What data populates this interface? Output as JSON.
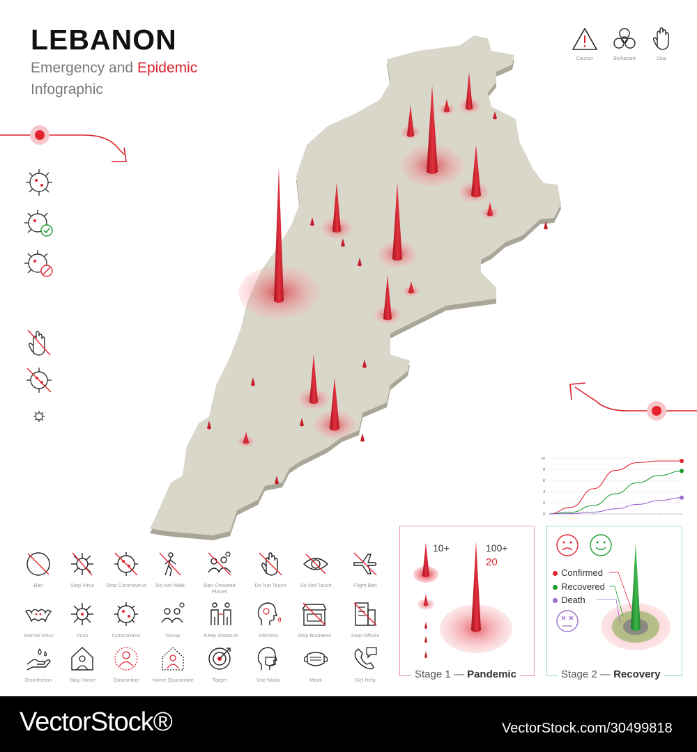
{
  "header": {
    "title": "LEBANON",
    "subtitle_prefix": "Emergency and",
    "subtitle_highlight": "Epidemic",
    "subtitle_line2": "Infographic"
  },
  "top_icons": [
    {
      "label": "Caution",
      "icon": "caution-icon"
    },
    {
      "label": "Biohazard",
      "icon": "biohazard-icon"
    },
    {
      "label": "Stop",
      "icon": "stop-hand-icon"
    }
  ],
  "icon_grid": [
    {
      "label": "Ban",
      "icon": "ban-icon"
    },
    {
      "label": "Stop Virus",
      "icon": "stop-virus-icon"
    },
    {
      "label": "Stop Coronavirus",
      "icon": "stop-coronavirus-icon"
    },
    {
      "label": "Do Not Walk",
      "icon": "do-not-walk-icon"
    },
    {
      "label": "Ban Crowded Places",
      "icon": "ban-crowded-places-icon"
    },
    {
      "label": "Do Not Touch",
      "icon": "do-not-touch-icon"
    },
    {
      "label": "Do Not Touch",
      "icon": "do-not-touch-eye-icon"
    },
    {
      "label": "Flight Ban",
      "icon": "flight-ban-icon"
    },
    {
      "label": "Animal Virus",
      "icon": "animal-virus-icon"
    },
    {
      "label": "Virus",
      "icon": "virus-icon"
    },
    {
      "label": "Coronavirus",
      "icon": "coronavirus-icon"
    },
    {
      "label": "Group",
      "icon": "group-icon"
    },
    {
      "label": "Keep Distance",
      "icon": "keep-distance-icon"
    },
    {
      "label": "Infection",
      "icon": "infection-icon"
    },
    {
      "label": "Stop Business",
      "icon": "stop-business-icon"
    },
    {
      "label": "Stop Offices",
      "icon": "stop-offices-icon"
    },
    {
      "label": "Disinfection",
      "icon": "disinfection-icon"
    },
    {
      "label": "Stay Home",
      "icon": "stay-home-icon"
    },
    {
      "label": "Quarantine",
      "icon": "quarantine-icon"
    },
    {
      "label": "Home Quarantine",
      "icon": "home-quarantine-icon"
    },
    {
      "label": "Target",
      "icon": "target-icon"
    },
    {
      "label": "Use Mask",
      "icon": "use-mask-icon"
    },
    {
      "label": "Mask",
      "icon": "mask-icon"
    },
    {
      "label": "Get Help",
      "icon": "get-help-icon"
    }
  ],
  "stage1": {
    "label_prefix": "Stage 1 —",
    "label_bold": "Pandemic",
    "small_value": "10+",
    "large_value": "100+",
    "count": "20"
  },
  "stage2": {
    "label_prefix": "Stage 2 —",
    "label_bold": "Recovery",
    "legend": [
      {
        "label": "Confirmed",
        "color": "#e32230"
      },
      {
        "label": "Recovered",
        "color": "#1a9c2c"
      },
      {
        "label": "Death",
        "color": "#9b6bd0"
      }
    ]
  },
  "chart_data": {
    "type": "line",
    "title": "",
    "xlabel": "",
    "ylabel": "",
    "ylim": [
      0,
      10
    ],
    "yticks": [
      "0",
      "2",
      "4",
      "6",
      "8",
      "10"
    ],
    "x": [
      0,
      1,
      2,
      3,
      4,
      5,
      6
    ],
    "series": [
      {
        "color": "#e32230",
        "values": [
          0,
          1.2,
          4.5,
          7.8,
          9.2,
          9.5,
          9.5
        ]
      },
      {
        "color": "#1a9c2c",
        "values": [
          0,
          0.3,
          1.5,
          3.6,
          5.6,
          6.9,
          7.7
        ]
      },
      {
        "color": "#9b6bd0",
        "values": [
          0,
          0.05,
          0.3,
          0.9,
          1.7,
          2.4,
          2.9
        ]
      }
    ]
  },
  "footer": {
    "brand": "VectorStock®",
    "image_id": "VectorStock.com/30499818"
  }
}
